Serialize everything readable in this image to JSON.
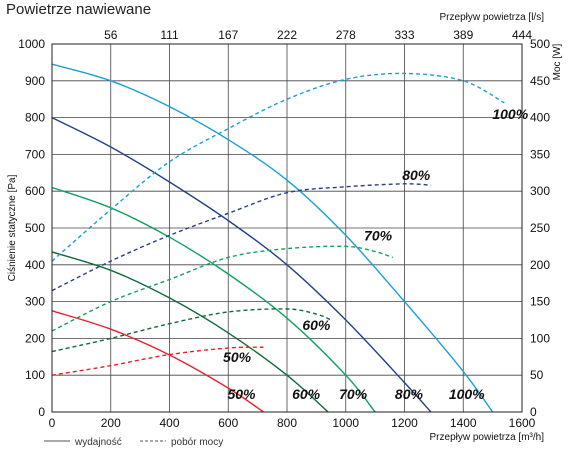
{
  "page": {
    "title": "Powietrze nawiewane"
  },
  "chart_data": {
    "type": "line",
    "grid": true,
    "x": {
      "label": "Przepływ powietrza [m³/h]",
      "range": [
        0,
        1600
      ],
      "ticks": [
        0,
        200,
        400,
        600,
        800,
        1000,
        1200,
        1400,
        1600
      ]
    },
    "x_top": {
      "label": "Przepływ powietrza [l/s]",
      "tick_labels": [
        "56",
        "111",
        "167",
        "222",
        "278",
        "333",
        "389",
        "444"
      ],
      "tick_positions_m3h": [
        200,
        400,
        600,
        800,
        1000,
        1200,
        1400,
        1600
      ]
    },
    "y_left": {
      "label": "Ciśnienie statyczne [Pa]",
      "range": [
        0,
        1000
      ],
      "ticks": [
        0,
        100,
        200,
        300,
        400,
        500,
        600,
        700,
        800,
        900,
        1000
      ]
    },
    "y_right": {
      "label": "Moc [W]",
      "range": [
        0,
        500
      ],
      "ticks": [
        0,
        50,
        100,
        150,
        200,
        250,
        300,
        350,
        400,
        450,
        500
      ]
    },
    "legend": {
      "placement": "bottom-left",
      "items": [
        {
          "style": "solid",
          "label": "wydajność"
        },
        {
          "style": "dashed",
          "label": "pobór mocy"
        }
      ]
    },
    "pressure_label_row": [
      "50%",
      "60%",
      "70%",
      "80%",
      "100%"
    ],
    "series": [
      {
        "kind": "pressure",
        "level": "100%",
        "color": "#1a9fd6",
        "axis": "left",
        "points": [
          [
            0,
            945
          ],
          [
            200,
            900
          ],
          [
            400,
            830
          ],
          [
            600,
            740
          ],
          [
            800,
            630
          ],
          [
            1000,
            480
          ],
          [
            1200,
            300
          ],
          [
            1400,
            110
          ],
          [
            1500,
            0
          ]
        ]
      },
      {
        "kind": "pressure",
        "level": "80%",
        "color": "#22408a",
        "axis": "left",
        "points": [
          [
            0,
            800
          ],
          [
            200,
            720
          ],
          [
            400,
            625
          ],
          [
            600,
            520
          ],
          [
            800,
            400
          ],
          [
            1000,
            250
          ],
          [
            1200,
            80
          ],
          [
            1290,
            0
          ]
        ]
      },
      {
        "kind": "pressure",
        "level": "70%",
        "color": "#12a060",
        "axis": "left",
        "points": [
          [
            0,
            610
          ],
          [
            200,
            555
          ],
          [
            400,
            475
          ],
          [
            600,
            375
          ],
          [
            800,
            255
          ],
          [
            1000,
            100
          ],
          [
            1100,
            0
          ]
        ]
      },
      {
        "kind": "pressure",
        "level": "60%",
        "color": "#0f6b3a",
        "axis": "left",
        "points": [
          [
            0,
            435
          ],
          [
            200,
            385
          ],
          [
            400,
            310
          ],
          [
            600,
            215
          ],
          [
            800,
            100
          ],
          [
            940,
            0
          ]
        ]
      },
      {
        "kind": "pressure",
        "level": "50%",
        "color": "#e8202c",
        "axis": "left",
        "points": [
          [
            0,
            275
          ],
          [
            200,
            225
          ],
          [
            400,
            155
          ],
          [
            600,
            65
          ],
          [
            720,
            0
          ]
        ]
      },
      {
        "kind": "power",
        "level": "100%",
        "color": "#1a9fd6",
        "axis": "right",
        "points": [
          [
            0,
            205
          ],
          [
            200,
            275
          ],
          [
            400,
            340
          ],
          [
            600,
            385
          ],
          [
            800,
            425
          ],
          [
            1000,
            452
          ],
          [
            1200,
            460
          ],
          [
            1400,
            450
          ],
          [
            1540,
            420
          ]
        ]
      },
      {
        "kind": "power",
        "level": "80%",
        "color": "#22408a",
        "axis": "right",
        "points": [
          [
            0,
            165
          ],
          [
            200,
            205
          ],
          [
            400,
            240
          ],
          [
            600,
            270
          ],
          [
            800,
            298
          ],
          [
            1000,
            306
          ],
          [
            1200,
            310
          ],
          [
            1290,
            308
          ]
        ]
      },
      {
        "kind": "power",
        "level": "70%",
        "color": "#12a060",
        "axis": "right",
        "points": [
          [
            0,
            110
          ],
          [
            200,
            150
          ],
          [
            400,
            180
          ],
          [
            600,
            210
          ],
          [
            800,
            222
          ],
          [
            1000,
            225
          ],
          [
            1100,
            218
          ],
          [
            1160,
            210
          ]
        ]
      },
      {
        "kind": "power",
        "level": "60%",
        "color": "#0f6b3a",
        "axis": "right",
        "points": [
          [
            0,
            82
          ],
          [
            200,
            100
          ],
          [
            400,
            120
          ],
          [
            600,
            136
          ],
          [
            800,
            140
          ],
          [
            900,
            133
          ],
          [
            950,
            125
          ]
        ]
      },
      {
        "kind": "power",
        "level": "50%",
        "color": "#e8202c",
        "axis": "right",
        "points": [
          [
            0,
            50
          ],
          [
            200,
            63
          ],
          [
            400,
            78
          ],
          [
            600,
            87
          ],
          [
            720,
            88
          ]
        ]
      }
    ],
    "power_labels": [
      {
        "text": "100%",
        "x": 1560,
        "y": 405
      },
      {
        "text": "80%",
        "x": 1240,
        "y": 322
      },
      {
        "text": "70%",
        "x": 1110,
        "y": 240
      },
      {
        "text": "60%",
        "x": 900,
        "y": 118
      },
      {
        "text": "50%",
        "x": 630,
        "y": 75
      }
    ]
  }
}
